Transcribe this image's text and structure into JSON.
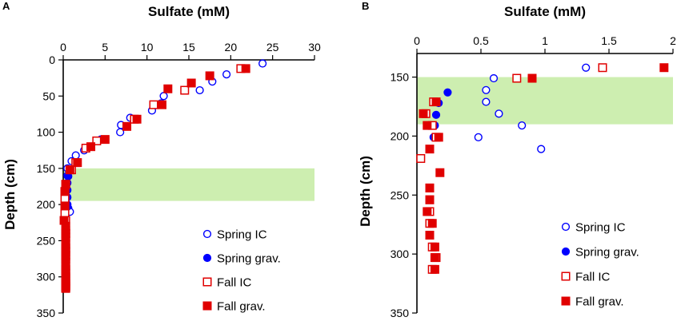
{
  "chart_data": [
    {
      "panel_label": "A",
      "type": "scatter",
      "title": "Sulfate (mM)",
      "xlabel": "Sulfate (mM)",
      "ylabel": "Depth (cm)",
      "xlim": [
        0,
        30
      ],
      "ylim": [
        350,
        0
      ],
      "xticks": [
        0,
        5,
        10,
        15,
        20,
        25,
        30
      ],
      "yticks": [
        0,
        50,
        100,
        150,
        200,
        250,
        300,
        350
      ],
      "shaded_band": {
        "y_from": 150,
        "y_to": 195,
        "color": "#cdeeb0"
      },
      "legend": {
        "placement": "bottom-right"
      },
      "series": [
        {
          "name": "Spring IC",
          "marker": "circle-open",
          "color": "#0000ff",
          "x": [
            23.8,
            19.5,
            17.8,
            16.3,
            12,
            11.7,
            10.6,
            8,
            6.9,
            6.8,
            4.5,
            2.5,
            1.5,
            1.0,
            0.5,
            0.5,
            0.5,
            0.5,
            0.5,
            0.5,
            0.6,
            0.8
          ],
          "y": [
            5,
            20,
            30,
            42,
            50,
            60,
            70,
            80,
            90,
            100,
            110,
            125,
            132,
            140,
            150,
            160,
            170,
            180,
            190,
            200,
            205,
            210
          ]
        },
        {
          "name": "Spring grav.",
          "marker": "circle-filled",
          "color": "#0000ff",
          "x": [
            2.8,
            0.6,
            0.4,
            0.4,
            0.4,
            0.4,
            0.5
          ],
          "y": [
            122,
            161,
            172,
            181,
            190,
            200,
            203
          ]
        },
        {
          "name": "Fall IC",
          "marker": "square-open",
          "color": "#e00000",
          "x": [
            21.2,
            14.5,
            10.8,
            8.5,
            4,
            2.7,
            1.5,
            1,
            0.3,
            0.2,
            0.2,
            0.2,
            0.2,
            0.3,
            0.3,
            0.3,
            0.3,
            0.3,
            0.3
          ],
          "y": [
            12,
            42,
            62,
            82,
            112,
            122,
            142,
            152,
            172,
            182,
            192,
            202,
            212,
            222,
            240,
            262,
            272,
            292,
            302
          ]
        },
        {
          "name": "Fall grav.",
          "marker": "square-filled",
          "color": "#e00000",
          "x": [
            21.8,
            17.5,
            15.3,
            12.5,
            11.8,
            8.8,
            7.6,
            5,
            3.3,
            1.7,
            0.8,
            0.3,
            0.2,
            0.2,
            0.1,
            0.3,
            0.3,
            0.3,
            0.3,
            0.3,
            0.3,
            0.3,
            0.3,
            0.3,
            0.3,
            0.3,
            0.3,
            0.3,
            0.3,
            0.3,
            0.3,
            0.3,
            0.3,
            0.3,
            0.3,
            0.3,
            0.3,
            0.3
          ],
          "y": [
            12,
            22,
            32,
            40,
            62,
            82,
            92,
            110,
            120,
            142,
            152,
            172,
            182,
            202,
            222,
            230,
            235,
            240,
            245,
            250,
            255,
            260,
            265,
            270,
            275,
            280,
            285,
            290,
            295,
            300,
            303,
            306,
            309,
            312,
            313,
            314,
            315,
            316
          ]
        }
      ],
      "legend_entries": [
        "Spring IC",
        "Spring grav.",
        "Fall IC",
        "Fall grav."
      ]
    },
    {
      "panel_label": "B",
      "type": "scatter",
      "title": "Sulfate (mM)",
      "xlabel": "Sulfate (mM)",
      "ylabel": "Depth (cm)",
      "xlim": [
        0,
        2
      ],
      "ylim": [
        350,
        130
      ],
      "xticks": [
        0,
        0.5,
        1,
        1.5,
        2
      ],
      "xtick_labels": [
        "0",
        "0.5",
        "1",
        "1.5",
        "2"
      ],
      "yticks": [
        150,
        200,
        250,
        300,
        350
      ],
      "shaded_band": {
        "y_from": 150,
        "y_to": 190,
        "color": "#cdeeb0"
      },
      "legend": {
        "placement": "bottom-right"
      },
      "series": [
        {
          "name": "Spring IC",
          "marker": "circle-open",
          "color": "#0000ff",
          "x": [
            1.32,
            0.6,
            0.54,
            0.54,
            0.64,
            0.82,
            0.97,
            0.48
          ],
          "y": [
            142,
            151,
            161,
            171,
            181,
            191,
            211,
            201
          ]
        },
        {
          "name": "Spring grav.",
          "marker": "circle-filled",
          "color": "#0000ff",
          "x": [
            0.24,
            0.17,
            0.15,
            0.14,
            0.13
          ],
          "y": [
            163,
            172,
            182,
            191,
            201
          ]
        },
        {
          "name": "Fall IC",
          "marker": "square-open",
          "color": "#e00000",
          "x": [
            1.45,
            0.78,
            0.13,
            0.07,
            0.12,
            0.15,
            0.03,
            0.1,
            0.1,
            0.1,
            0.1,
            0.1,
            0.12,
            0.15,
            0.12
          ],
          "y": [
            142,
            151,
            171,
            181,
            191,
            201,
            219,
            244,
            254,
            264,
            274,
            284,
            294,
            303,
            313
          ]
        },
        {
          "name": "Fall grav.",
          "marker": "square-filled",
          "color": "#e00000",
          "x": [
            1.93,
            0.9,
            0.15,
            0.05,
            0.08,
            0.17,
            0.1,
            0.18,
            0.1,
            0.1,
            0.08,
            0.12,
            0.1,
            0.14,
            0.14,
            0.14
          ],
          "y": [
            142,
            151,
            171,
            181,
            191,
            201,
            211,
            231,
            244,
            254,
            264,
            274,
            284,
            294,
            303,
            313
          ]
        }
      ],
      "legend_entries": [
        "Spring IC",
        "Spring grav.",
        "Fall IC",
        "Fall grav."
      ]
    }
  ]
}
